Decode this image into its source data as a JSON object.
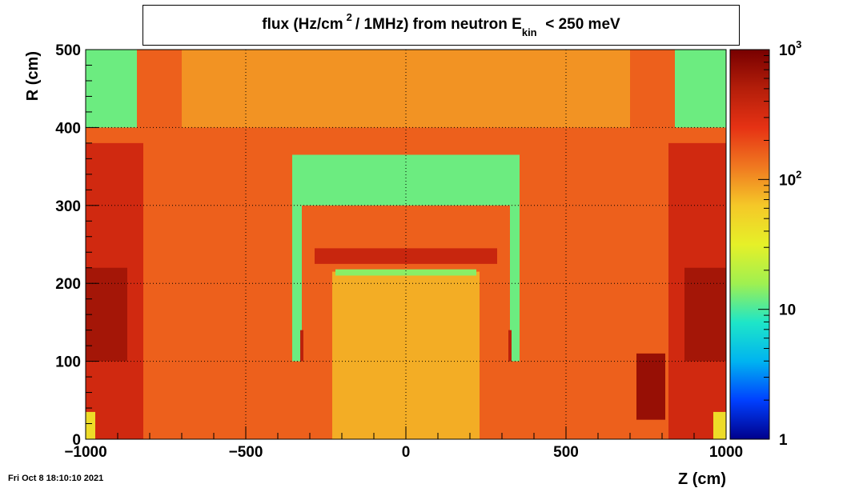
{
  "header": {
    "title_parts": {
      "pre": "flux (Hz/cm",
      "sup": "2",
      "mid": "/ 1MHz) from   neutron  E",
      "sub": "kin",
      "post": "< 250 meV"
    }
  },
  "footer": {
    "timestamp": "Fri Oct  8 18:10:10 2021"
  },
  "chart_data": {
    "type": "heatmap",
    "xlabel": "Z (cm)",
    "ylabel": "R (cm)",
    "xlim": [
      -1000,
      1000
    ],
    "ylim": [
      0,
      500
    ],
    "x_ticks": [
      {
        "value": -1000,
        "label": "−1000"
      },
      {
        "value": -500,
        "label": "−500"
      },
      {
        "value": 0,
        "label": "0"
      },
      {
        "value": 500,
        "label": "500"
      },
      {
        "value": 1000,
        "label": "1000"
      }
    ],
    "y_ticks": [
      {
        "value": 0,
        "label": "0"
      },
      {
        "value": 100,
        "label": "100"
      },
      {
        "value": 200,
        "label": "200"
      },
      {
        "value": 300,
        "label": "300"
      },
      {
        "value": 400,
        "label": "400"
      },
      {
        "value": 500,
        "label": "500"
      }
    ],
    "grid": true,
    "color_scale": {
      "type": "log",
      "range": [
        1,
        1000
      ],
      "ticks": [
        {
          "value": 1,
          "base": "1",
          "exp": ""
        },
        {
          "value": 10,
          "base": "10",
          "exp": ""
        },
        {
          "value": 100,
          "base": "10",
          "exp": "2"
        },
        {
          "value": 1000,
          "base": "10",
          "exp": "3"
        }
      ],
      "colormap": [
        "#00008b",
        "#0040ff",
        "#00b4f0",
        "#1ee6c8",
        "#a0f050",
        "#e6f028",
        "#f5c828",
        "#f07820",
        "#e63214",
        "#b41e0a",
        "#780000"
      ]
    },
    "regions": [
      {
        "name": "background",
        "z": [
          -1000,
          1000
        ],
        "r": [
          0,
          500
        ],
        "value": 160
      },
      {
        "name": "upper-center",
        "z": [
          -700,
          700
        ],
        "r": [
          400,
          500
        ],
        "value": 100
      },
      {
        "name": "left-outer-band",
        "z": [
          -1000,
          -820
        ],
        "r": [
          0,
          380
        ],
        "value": 340
      },
      {
        "name": "left-outer-core",
        "z": [
          -1000,
          -870
        ],
        "r": [
          100,
          220
        ],
        "value": 600
      },
      {
        "name": "right-outer-band",
        "z": [
          820,
          1000
        ],
        "r": [
          0,
          380
        ],
        "value": 340
      },
      {
        "name": "right-outer-core",
        "z": [
          870,
          1000
        ],
        "r": [
          100,
          220
        ],
        "value": 600
      },
      {
        "name": "left-upper-corner",
        "z": [
          -1000,
          -840
        ],
        "r": [
          400,
          500
        ],
        "value": 12
      },
      {
        "name": "right-upper-corner",
        "z": [
          840,
          1000
        ],
        "r": [
          400,
          500
        ],
        "value": 12
      },
      {
        "name": "inner-bore",
        "z": [
          -230,
          230
        ],
        "r": [
          0,
          215
        ],
        "value": 80
      },
      {
        "name": "detector-top-shell",
        "z": [
          -355,
          355
        ],
        "r": [
          300,
          365
        ],
        "value": 12
      },
      {
        "name": "left-side-shell",
        "z": [
          -355,
          -325
        ],
        "r": [
          100,
          300
        ],
        "value": 12
      },
      {
        "name": "right-side-shell",
        "z": [
          325,
          355
        ],
        "r": [
          100,
          300
        ],
        "value": 12
      },
      {
        "name": "hot-band",
        "z": [
          -285,
          285
        ],
        "r": [
          225,
          245
        ],
        "value": 380
      },
      {
        "name": "inner-top-strip",
        "z": [
          -220,
          220
        ],
        "r": [
          210,
          218
        ],
        "value": 14
      },
      {
        "name": "left-hot-slot",
        "z": [
          -330,
          -320
        ],
        "r": [
          100,
          140
        ],
        "value": 450
      },
      {
        "name": "right-hot-slot",
        "z": [
          320,
          330
        ],
        "r": [
          100,
          140
        ],
        "value": 450
      },
      {
        "name": "right-hot-spot",
        "z": [
          720,
          810
        ],
        "r": [
          25,
          110
        ],
        "value": 700
      },
      {
        "name": "left-bottom-corner",
        "z": [
          -1000,
          -970
        ],
        "r": [
          0,
          35
        ],
        "value": 45
      },
      {
        "name": "right-bottom-corner",
        "z": [
          960,
          1000
        ],
        "r": [
          0,
          35
        ],
        "value": 45
      }
    ]
  }
}
